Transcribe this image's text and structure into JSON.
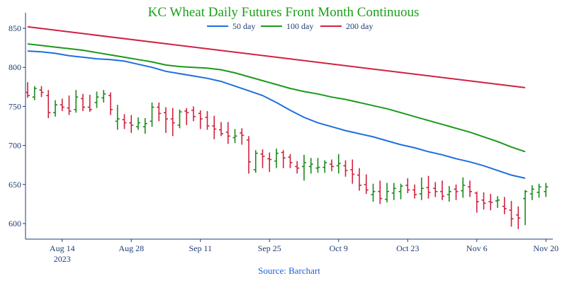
{
  "chart_data": {
    "type": "ohlc",
    "title": "KC Wheat Daily Futures Front Month Continuous",
    "source": "Source: Barchart",
    "colors": {
      "title": "#1aa01a",
      "source": "#1f5fd6",
      "axis_text": "#1f3b73",
      "up": "#1a8a1a",
      "down": "#d0213f",
      "ma50": "#1e6fe0",
      "ma100": "#1a9a1a",
      "ma200": "#d0213f"
    },
    "ylim": [
      580,
      870
    ],
    "yticks": [
      600,
      650,
      700,
      750,
      800,
      850
    ],
    "xticks": [
      {
        "day": 5,
        "label": "Aug 14",
        "sub": "2023"
      },
      {
        "day": 15,
        "label": "Aug 28",
        "sub": ""
      },
      {
        "day": 25,
        "label": "Sep 11",
        "sub": ""
      },
      {
        "day": 35,
        "label": "Sep 25",
        "sub": ""
      },
      {
        "day": 45,
        "label": "Oct 9",
        "sub": ""
      },
      {
        "day": 55,
        "label": "Oct 23",
        "sub": ""
      },
      {
        "day": 65,
        "label": "Nov 6",
        "sub": ""
      },
      {
        "day": 75,
        "label": "Nov 20",
        "sub": ""
      }
    ],
    "ohlc": [
      [
        768,
        781,
        761,
        764
      ],
      [
        762,
        776,
        758,
        773
      ],
      [
        771,
        776,
        762,
        768
      ],
      [
        764,
        771,
        735,
        742
      ],
      [
        742,
        758,
        737,
        752
      ],
      [
        752,
        760,
        744,
        749
      ],
      [
        748,
        764,
        739,
        744
      ],
      [
        746,
        771,
        742,
        762
      ],
      [
        760,
        766,
        744,
        749
      ],
      [
        749,
        765,
        743,
        746
      ],
      [
        755,
        769,
        748,
        762
      ],
      [
        761,
        771,
        755,
        766
      ],
      [
        764,
        768,
        739,
        746
      ],
      [
        731,
        752,
        720,
        734
      ],
      [
        733,
        740,
        721,
        729
      ],
      [
        729,
        739,
        716,
        726
      ],
      [
        724,
        736,
        720,
        729
      ],
      [
        724,
        735,
        715,
        728
      ],
      [
        731,
        755,
        724,
        749
      ],
      [
        749,
        755,
        731,
        741
      ],
      [
        742,
        749,
        716,
        734
      ],
      [
        734,
        748,
        712,
        729
      ],
      [
        726,
        746,
        722,
        743
      ],
      [
        744,
        748,
        726,
        742
      ],
      [
        745,
        750,
        731,
        737
      ],
      [
        741,
        745,
        721,
        734
      ],
      [
        736,
        744,
        720,
        725
      ],
      [
        725,
        738,
        708,
        721
      ],
      [
        720,
        730,
        712,
        715
      ],
      [
        717,
        730,
        702,
        712
      ],
      [
        710,
        721,
        703,
        712
      ],
      [
        716,
        722,
        701,
        713
      ],
      [
        707,
        712,
        664,
        679
      ],
      [
        669,
        694,
        665,
        690
      ],
      [
        689,
        695,
        671,
        686
      ],
      [
        683,
        691,
        666,
        682
      ],
      [
        680,
        696,
        671,
        690
      ],
      [
        691,
        694,
        671,
        684
      ],
      [
        685,
        689,
        671,
        678
      ],
      [
        673,
        680,
        664,
        671
      ],
      [
        673,
        688,
        655,
        678
      ],
      [
        673,
        684,
        664,
        676
      ],
      [
        671,
        684,
        665,
        672
      ],
      [
        672,
        681,
        665,
        678
      ],
      [
        676,
        682,
        667,
        673
      ],
      [
        674,
        689,
        664,
        677
      ],
      [
        674,
        681,
        660,
        668
      ],
      [
        669,
        682,
        651,
        663
      ],
      [
        662,
        671,
        642,
        649
      ],
      [
        650,
        663,
        638,
        643
      ],
      [
        637,
        651,
        628,
        641
      ],
      [
        641,
        655,
        625,
        632
      ],
      [
        631,
        652,
        627,
        641
      ],
      [
        639,
        652,
        630,
        645
      ],
      [
        641,
        651,
        631,
        648
      ],
      [
        649,
        658,
        639,
        643
      ],
      [
        643,
        650,
        632,
        637
      ],
      [
        638,
        659,
        630,
        645
      ],
      [
        646,
        661,
        632,
        640
      ],
      [
        645,
        653,
        634,
        641
      ],
      [
        641,
        655,
        630,
        635
      ],
      [
        637,
        648,
        628,
        641
      ],
      [
        644,
        650,
        630,
        641
      ],
      [
        642,
        659,
        633,
        649
      ],
      [
        647,
        655,
        634,
        641
      ],
      [
        639,
        641,
        614,
        628
      ],
      [
        630,
        640,
        618,
        626
      ],
      [
        628,
        638,
        617,
        627
      ],
      [
        629,
        635,
        620,
        630
      ],
      [
        622,
        634,
        612,
        619
      ],
      [
        617,
        629,
        596,
        606
      ],
      [
        611,
        622,
        593,
        607
      ],
      [
        632,
        643,
        598,
        641
      ],
      [
        638,
        649,
        630,
        644
      ],
      [
        640,
        651,
        633,
        647
      ],
      [
        641,
        652,
        634,
        647
      ]
    ],
    "moving_averages": [
      {
        "name": "50 day",
        "points": [
          [
            0,
            821
          ],
          [
            2,
            820
          ],
          [
            4,
            818
          ],
          [
            6,
            815
          ],
          [
            8,
            813
          ],
          [
            10,
            811
          ],
          [
            12,
            810
          ],
          [
            14,
            808
          ],
          [
            16,
            804
          ],
          [
            18,
            800
          ],
          [
            20,
            795
          ],
          [
            22,
            792
          ],
          [
            24,
            789
          ],
          [
            26,
            786
          ],
          [
            28,
            782
          ],
          [
            30,
            776
          ],
          [
            32,
            770
          ],
          [
            34,
            764
          ],
          [
            36,
            755
          ],
          [
            38,
            745
          ],
          [
            40,
            736
          ],
          [
            42,
            729
          ],
          [
            44,
            724
          ],
          [
            46,
            719
          ],
          [
            48,
            715
          ],
          [
            50,
            711
          ],
          [
            52,
            706
          ],
          [
            54,
            701
          ],
          [
            56,
            697
          ],
          [
            58,
            692
          ],
          [
            60,
            688
          ],
          [
            62,
            683
          ],
          [
            64,
            679
          ],
          [
            66,
            674
          ],
          [
            68,
            668
          ],
          [
            70,
            662
          ],
          [
            72,
            658
          ]
        ]
      },
      {
        "name": "100 day",
        "points": [
          [
            0,
            830
          ],
          [
            2,
            828
          ],
          [
            4,
            826
          ],
          [
            6,
            824
          ],
          [
            8,
            822
          ],
          [
            10,
            819
          ],
          [
            12,
            816
          ],
          [
            14,
            813
          ],
          [
            16,
            810
          ],
          [
            18,
            807
          ],
          [
            20,
            803
          ],
          [
            22,
            801
          ],
          [
            24,
            800
          ],
          [
            26,
            799
          ],
          [
            28,
            797
          ],
          [
            30,
            793
          ],
          [
            32,
            788
          ],
          [
            34,
            783
          ],
          [
            36,
            778
          ],
          [
            38,
            773
          ],
          [
            40,
            769
          ],
          [
            42,
            766
          ],
          [
            44,
            762
          ],
          [
            46,
            759
          ],
          [
            48,
            755
          ],
          [
            50,
            751
          ],
          [
            52,
            747
          ],
          [
            54,
            742
          ],
          [
            56,
            737
          ],
          [
            58,
            732
          ],
          [
            60,
            727
          ],
          [
            62,
            722
          ],
          [
            64,
            717
          ],
          [
            66,
            711
          ],
          [
            68,
            705
          ],
          [
            70,
            698
          ],
          [
            72,
            692
          ]
        ]
      },
      {
        "name": "200 day",
        "points": [
          [
            0,
            852
          ],
          [
            72,
            774
          ]
        ]
      }
    ]
  }
}
